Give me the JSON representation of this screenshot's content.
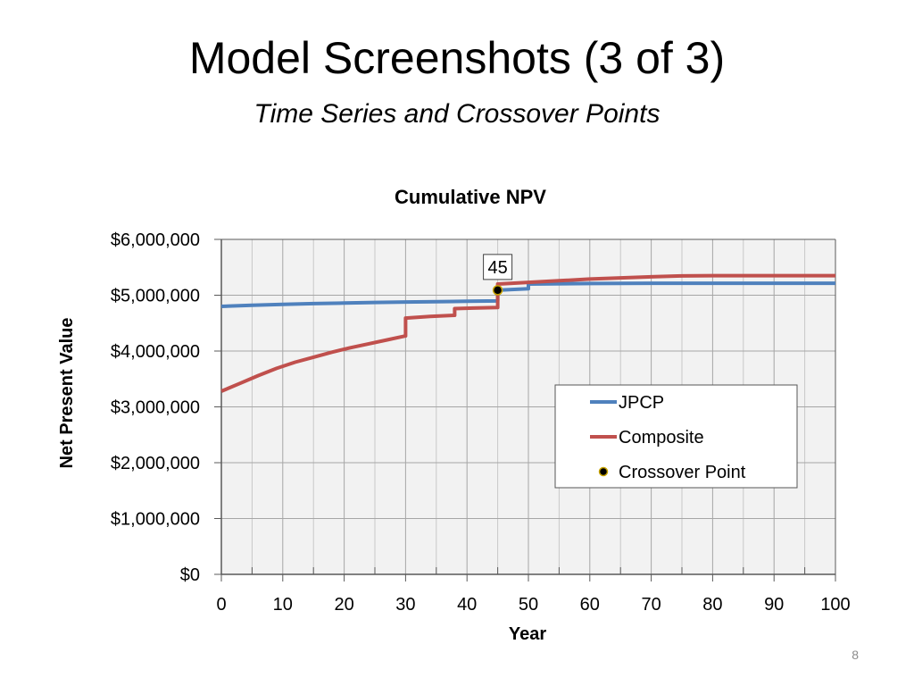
{
  "slide": {
    "title": "Model Screenshots (3 of 3)",
    "subtitle": "Time Series and Crossover Points",
    "page_number": "8"
  },
  "chart_data": {
    "type": "line",
    "title": "Cumulative NPV",
    "xlabel": "Year",
    "ylabel": "Net Present Value",
    "xlim": [
      0,
      100
    ],
    "ylim": [
      0,
      6000000
    ],
    "x_ticks": [
      0,
      10,
      20,
      30,
      40,
      50,
      60,
      70,
      80,
      90,
      100
    ],
    "x_tick_labels": [
      "0",
      "10",
      "20",
      "30",
      "40",
      "50",
      "60",
      "70",
      "80",
      "90",
      "100"
    ],
    "y_ticks": [
      0,
      1000000,
      2000000,
      3000000,
      4000000,
      5000000,
      6000000
    ],
    "y_tick_labels": [
      "$0",
      "$1,000,000",
      "$2,000,000",
      "$3,000,000",
      "$4,000,000",
      "$5,000,000",
      "$6,000,000"
    ],
    "grid": true,
    "legend_position": "center-right",
    "series": [
      {
        "name": "JPCP",
        "color": "#4f81bd",
        "points": [
          [
            0,
            4800000
          ],
          [
            5,
            4820000
          ],
          [
            10,
            4835000
          ],
          [
            15,
            4850000
          ],
          [
            20,
            4860000
          ],
          [
            25,
            4870000
          ],
          [
            30,
            4878000
          ],
          [
            35,
            4885000
          ],
          [
            40,
            4892000
          ],
          [
            45,
            4898000
          ],
          [
            45,
            5090000
          ],
          [
            50,
            5115000
          ],
          [
            50,
            5200000
          ],
          [
            60,
            5210000
          ],
          [
            70,
            5215000
          ],
          [
            80,
            5215000
          ],
          [
            90,
            5215000
          ],
          [
            100,
            5215000
          ]
        ]
      },
      {
        "name": "Composite",
        "color": "#c0504d",
        "points": [
          [
            0,
            3280000
          ],
          [
            3,
            3420000
          ],
          [
            6,
            3560000
          ],
          [
            9,
            3690000
          ],
          [
            12,
            3800000
          ],
          [
            15,
            3890000
          ],
          [
            18,
            3980000
          ],
          [
            21,
            4060000
          ],
          [
            24,
            4130000
          ],
          [
            27,
            4200000
          ],
          [
            30,
            4270000
          ],
          [
            30,
            4590000
          ],
          [
            34,
            4620000
          ],
          [
            38,
            4640000
          ],
          [
            38,
            4760000
          ],
          [
            41,
            4770000
          ],
          [
            45,
            4780000
          ],
          [
            45,
            5200000
          ],
          [
            50,
            5230000
          ],
          [
            55,
            5260000
          ],
          [
            60,
            5290000
          ],
          [
            65,
            5310000
          ],
          [
            70,
            5330000
          ],
          [
            75,
            5345000
          ],
          [
            80,
            5350000
          ],
          [
            90,
            5350000
          ],
          [
            100,
            5350000
          ]
        ]
      }
    ],
    "crossover": {
      "name": "Crossover Point",
      "x": 45,
      "y": 5090000,
      "label": "45",
      "color": "#000000"
    }
  }
}
